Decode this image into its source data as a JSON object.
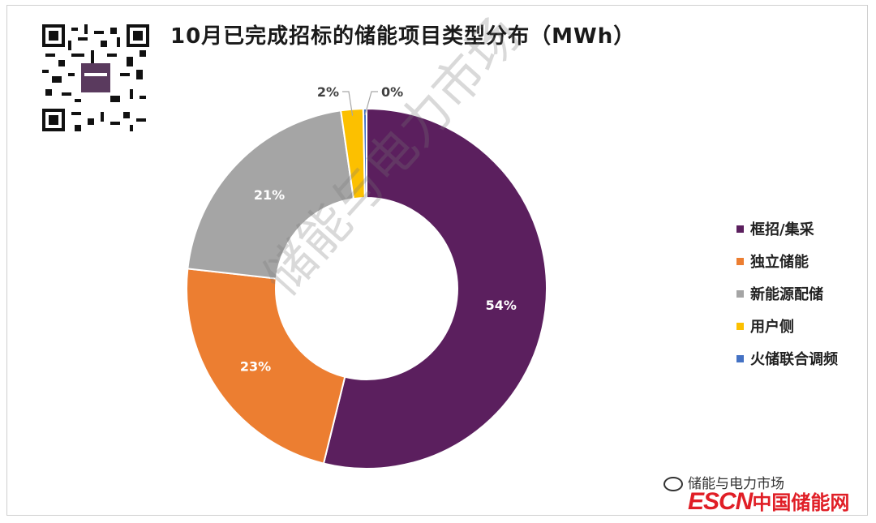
{
  "title": "10月已完成招标的储能项目类型分布（MWh）",
  "watermark": "储能与电力市场",
  "footer": {
    "wechat_label": "储能与电力市场",
    "logo_en": "ESCN",
    "logo_cn": "中国储能网"
  },
  "colors": {
    "框招/集采": "#5b1f5e",
    "独立储能": "#ec7e31",
    "新能源配储": "#a5a5a5",
    "用户侧": "#fcc000",
    "火储联合调频": "#4472c4"
  },
  "chart_data": {
    "type": "pie",
    "donut": true,
    "title": "10月已完成招标的储能项目类型分布（MWh）",
    "unit": "MWh",
    "categories": [
      "框招/集采",
      "独立储能",
      "新能源配储",
      "用户侧",
      "火储联合调频"
    ],
    "values": [
      54,
      23,
      21,
      2,
      0.3
    ],
    "labels": [
      "54%",
      "23%",
      "21%",
      "2%",
      "0%"
    ],
    "legend_position": "right"
  }
}
